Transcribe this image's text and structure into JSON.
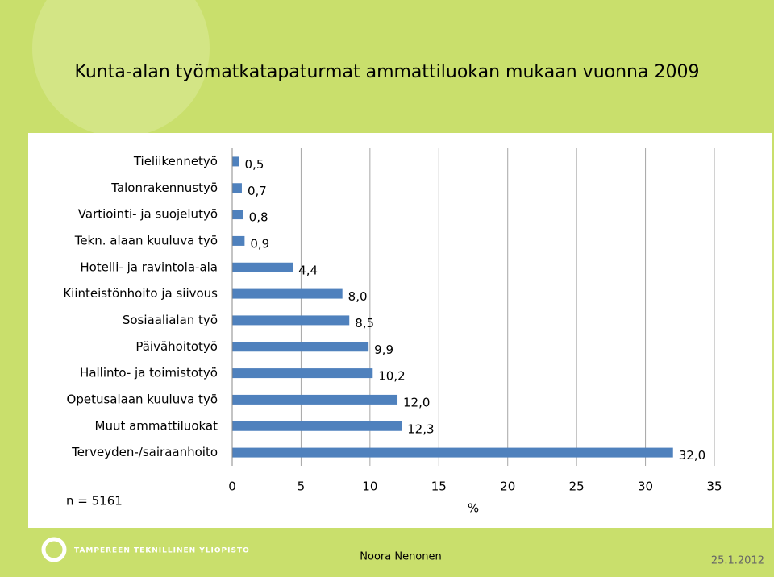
{
  "chart_data": {
    "type": "bar",
    "orientation": "horizontal",
    "title": "Kunta-alan työmatkatapaturmat ammattiluokan mukaan vuonna 2009",
    "categories": [
      "Tieliikennetyö",
      "Talonrakennustyö",
      "Vartiointi- ja suojelutyö",
      "Tekn. alaan kuuluva työ",
      "Hotelli- ja ravintola-ala",
      "Kiinteistönhoito ja siivous",
      "Sosiaalialan työ",
      "Päivähoitotyö",
      "Hallinto- ja toimistotyö",
      "Opetusalaan kuuluva työ",
      "Muut ammattiluokat",
      "Terveyden-/sairaanhoito"
    ],
    "values": [
      0.5,
      0.7,
      0.8,
      0.9,
      4.4,
      8.0,
      8.5,
      9.9,
      10.2,
      12.0,
      12.3,
      32.0
    ],
    "value_labels": [
      "0,5",
      "0,7",
      "0,8",
      "0,9",
      "4,4",
      "8,0",
      "8,5",
      "9,9",
      "10,2",
      "12,0",
      "12,3",
      "32,0"
    ],
    "color": "#4f81bd",
    "xlim": [
      0,
      35
    ],
    "xticks": [
      0,
      5,
      10,
      15,
      20,
      25,
      30,
      35
    ],
    "x_label": "%",
    "grid": true,
    "note": "n = 5161"
  },
  "footer": {
    "logo": "TAMPEREEN TEKNILLINEN YLIOPISTO",
    "author": "Noora Nenonen",
    "date": "25.1.2012"
  }
}
